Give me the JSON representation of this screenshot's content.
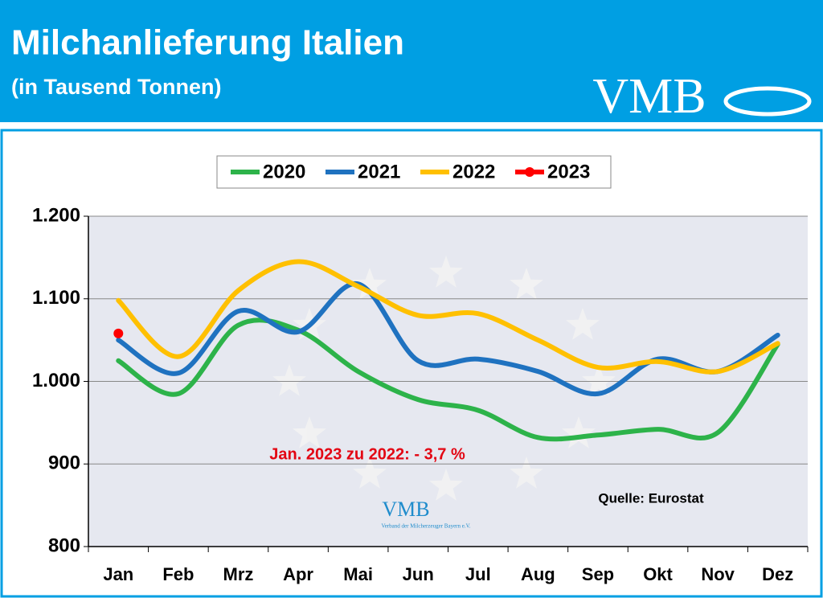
{
  "header": {
    "title": "Milchanlieferung Italien",
    "subtitle": "(in Tausend Tonnen)",
    "logo": "VMB"
  },
  "chart_data": {
    "type": "line",
    "categories": [
      "Jan",
      "Feb",
      "Mrz",
      "Apr",
      "Mai",
      "Jun",
      "Jul",
      "Aug",
      "Sep",
      "Okt",
      "Nov",
      "Dez"
    ],
    "series": [
      {
        "name": "2020",
        "color": "#2db34a",
        "values": [
          1025,
          985,
          1068,
          1062,
          1012,
          978,
          965,
          932,
          935,
          942,
          938,
          1045
        ]
      },
      {
        "name": "2021",
        "color": "#1f72c0",
        "values": [
          1050,
          1010,
          1085,
          1060,
          1118,
          1025,
          1027,
          1012,
          985,
          1027,
          1012,
          1056
        ]
      },
      {
        "name": "2022",
        "color": "#ffc000",
        "values": [
          1098,
          1030,
          1110,
          1145,
          1115,
          1080,
          1082,
          1050,
          1017,
          1024,
          1012,
          1046
        ]
      },
      {
        "name": "2023",
        "color": "#ff0000",
        "values": [
          1058,
          null,
          null,
          null,
          null,
          null,
          null,
          null,
          null,
          null,
          null,
          null
        ]
      }
    ],
    "ylim": [
      800,
      1200
    ],
    "yticks": [
      800,
      900,
      {
        "value": 1000,
        "label": "1.000"
      },
      {
        "value": 1100,
        "label": "1.100"
      },
      {
        "value": 1200,
        "label": "1.200"
      }
    ],
    "grid": true,
    "legend_position": "top",
    "annotation": "Jan. 2023 zu 2022: - 3,7 %",
    "source": "Quelle: Eurostat"
  },
  "watermark": {
    "logo": "VMB",
    "text": "Verband der Milcherzeuger Bayern e.V."
  }
}
